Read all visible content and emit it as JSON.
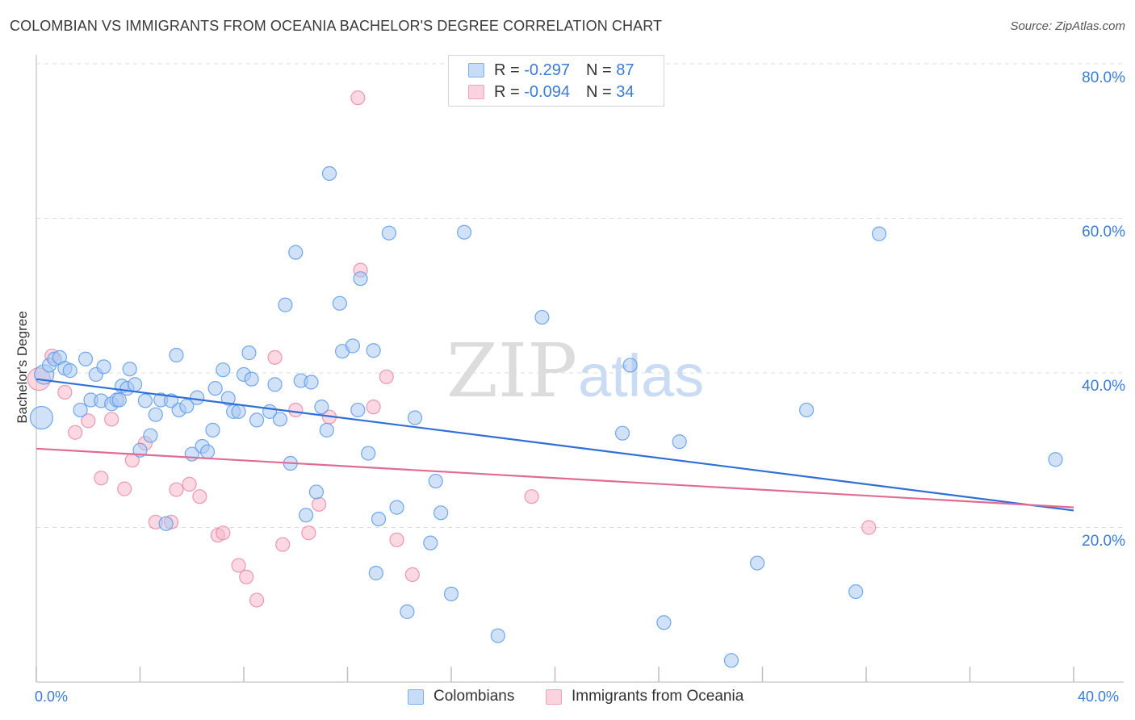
{
  "header": {
    "title": "COLOMBIAN VS IMMIGRANTS FROM OCEANIA BACHELOR'S DEGREE CORRELATION CHART",
    "source": "Source: ZipAtlas.com"
  },
  "watermark": {
    "text_zip": "ZIP",
    "text_atlas": "atlas"
  },
  "legend_top": {
    "rows": [
      {
        "r_label": "R =",
        "r_value": "-0.297",
        "n_label": "N =",
        "n_value": "87",
        "color": "#a9c9f3"
      },
      {
        "r_label": "R =",
        "r_value": "-0.094",
        "n_label": "N =",
        "n_value": "34",
        "color": "#f7b8cb"
      }
    ]
  },
  "legend_bottom": {
    "items": [
      {
        "label": "Colombians",
        "color": "#a9c9f3"
      },
      {
        "label": "Immigrants from Oceania",
        "color": "#f7b8cb"
      }
    ]
  },
  "chart_data": {
    "type": "scatter",
    "title": "COLOMBIAN VS IMMIGRANTS FROM OCEANIA BACHELOR'S DEGREE CORRELATION CHART",
    "xlabel": "",
    "ylabel": "Bachelor's Degree",
    "xlim": [
      0,
      40
    ],
    "ylim": [
      0,
      80
    ],
    "x_tick_labels": [
      "0.0%",
      "40.0%"
    ],
    "y_tick_labels": [
      "20.0%",
      "40.0%",
      "60.0%",
      "80.0%"
    ],
    "y_ticks": [
      20,
      40,
      60,
      80
    ],
    "grid": true,
    "legend_position": "top-center",
    "series": [
      {
        "name": "Colombians",
        "color": "#5b9bea",
        "fill": "#a9c9f3",
        "trend": {
          "x": [
            0,
            40
          ],
          "y": [
            39.2,
            22.2
          ],
          "color": "#2f6fd6"
        },
        "points": [
          [
            0.2,
            34.2,
            3
          ],
          [
            0.3,
            39.8,
            2
          ],
          [
            0.5,
            41.0,
            1
          ],
          [
            0.7,
            41.8,
            1
          ],
          [
            0.9,
            42.0,
            1
          ],
          [
            1.1,
            40.6,
            1
          ],
          [
            1.3,
            40.3,
            1
          ],
          [
            1.7,
            35.2,
            1
          ],
          [
            1.9,
            41.8,
            1
          ],
          [
            2.1,
            36.5,
            1
          ],
          [
            2.3,
            39.8,
            1
          ],
          [
            2.5,
            36.4,
            1
          ],
          [
            2.6,
            40.8,
            1
          ],
          [
            2.9,
            36.0,
            1
          ],
          [
            3.1,
            36.5,
            1
          ],
          [
            3.3,
            38.3,
            1
          ],
          [
            3.5,
            38.0,
            1
          ],
          [
            3.6,
            40.5,
            1
          ],
          [
            3.8,
            38.5,
            1
          ],
          [
            4.0,
            30.0,
            1
          ],
          [
            4.2,
            36.4,
            1
          ],
          [
            4.4,
            31.9,
            1
          ],
          [
            4.6,
            34.6,
            1
          ],
          [
            4.8,
            36.5,
            1
          ],
          [
            5.0,
            20.5,
            1
          ],
          [
            5.2,
            36.4,
            1
          ],
          [
            5.4,
            42.3,
            1
          ],
          [
            5.5,
            35.2,
            1
          ],
          [
            5.8,
            35.7,
            1
          ],
          [
            6.0,
            29.5,
            1
          ],
          [
            6.2,
            36.8,
            1
          ],
          [
            6.4,
            30.5,
            1
          ],
          [
            6.6,
            29.8,
            1
          ],
          [
            6.8,
            32.6,
            1
          ],
          [
            6.9,
            38.0,
            1
          ],
          [
            7.2,
            40.4,
            1
          ],
          [
            7.4,
            36.7,
            1
          ],
          [
            7.6,
            35.0,
            1
          ],
          [
            7.8,
            35.0,
            1
          ],
          [
            8.0,
            39.8,
            1
          ],
          [
            8.2,
            42.6,
            1
          ],
          [
            8.3,
            39.2,
            1
          ],
          [
            8.5,
            33.9,
            1
          ],
          [
            9.0,
            35.0,
            1
          ],
          [
            9.2,
            38.5,
            1
          ],
          [
            9.4,
            34.0,
            1
          ],
          [
            9.6,
            48.8,
            1
          ],
          [
            9.8,
            28.3,
            1
          ],
          [
            10.0,
            55.6,
            1
          ],
          [
            10.2,
            39.0,
            1
          ],
          [
            10.4,
            21.6,
            1
          ],
          [
            10.6,
            38.8,
            1
          ],
          [
            10.8,
            24.6,
            1
          ],
          [
            11.0,
            35.6,
            1
          ],
          [
            11.2,
            32.6,
            1
          ],
          [
            11.3,
            65.8,
            1
          ],
          [
            11.7,
            49.0,
            1
          ],
          [
            11.8,
            42.8,
            1
          ],
          [
            12.2,
            43.5,
            1
          ],
          [
            12.4,
            35.2,
            1
          ],
          [
            12.5,
            52.2,
            1
          ],
          [
            12.8,
            29.6,
            1
          ],
          [
            13.0,
            42.9,
            1
          ],
          [
            13.1,
            14.1,
            1
          ],
          [
            13.2,
            21.1,
            1
          ],
          [
            13.6,
            58.1,
            1
          ],
          [
            13.9,
            22.6,
            1
          ],
          [
            14.3,
            9.1,
            1
          ],
          [
            14.6,
            34.2,
            1
          ],
          [
            15.2,
            18.0,
            1
          ],
          [
            15.4,
            26.0,
            1
          ],
          [
            15.6,
            21.9,
            1
          ],
          [
            16.0,
            11.4,
            1
          ],
          [
            16.5,
            58.2,
            1
          ],
          [
            17.8,
            6.0,
            1
          ],
          [
            19.5,
            47.2,
            1
          ],
          [
            22.6,
            32.2,
            1
          ],
          [
            22.9,
            41.0,
            1
          ],
          [
            24.2,
            7.7,
            1
          ],
          [
            24.8,
            31.1,
            1
          ],
          [
            26.8,
            2.8,
            1
          ],
          [
            27.8,
            15.4,
            1
          ],
          [
            29.7,
            35.2,
            1
          ],
          [
            31.6,
            11.7,
            1
          ],
          [
            32.5,
            58.0,
            1
          ],
          [
            39.3,
            28.8,
            1
          ],
          [
            3.2,
            36.5,
            1
          ]
        ]
      },
      {
        "name": "Immigrants from Oceania",
        "color": "#e88aa8",
        "fill": "#f7b8cb",
        "trend": {
          "x": [
            0,
            40
          ],
          "y": [
            30.2,
            22.6
          ],
          "color": "#e06b93"
        },
        "points": [
          [
            0.1,
            39.2,
            3
          ],
          [
            0.6,
            42.2,
            1
          ],
          [
            1.1,
            37.5,
            1
          ],
          [
            1.5,
            32.3,
            1
          ],
          [
            2.0,
            33.8,
            1
          ],
          [
            2.5,
            26.4,
            1
          ],
          [
            2.9,
            34.0,
            1
          ],
          [
            3.4,
            25.0,
            1
          ],
          [
            3.7,
            28.7,
            1
          ],
          [
            4.2,
            30.9,
            1
          ],
          [
            4.6,
            20.7,
            1
          ],
          [
            5.2,
            20.7,
            1
          ],
          [
            5.4,
            24.9,
            1
          ],
          [
            5.9,
            25.6,
            1
          ],
          [
            6.3,
            24.0,
            1
          ],
          [
            7.0,
            19.0,
            1
          ],
          [
            7.2,
            19.3,
            1
          ],
          [
            7.8,
            15.1,
            1
          ],
          [
            8.1,
            13.6,
            1
          ],
          [
            8.5,
            10.6,
            1
          ],
          [
            9.2,
            42.0,
            1
          ],
          [
            9.5,
            17.8,
            1
          ],
          [
            10.0,
            35.2,
            1
          ],
          [
            10.5,
            19.3,
            1
          ],
          [
            10.9,
            23.0,
            1
          ],
          [
            11.3,
            34.3,
            1
          ],
          [
            12.4,
            75.6,
            1
          ],
          [
            12.5,
            53.3,
            1
          ],
          [
            13.0,
            35.6,
            1
          ],
          [
            13.5,
            39.5,
            1
          ],
          [
            13.9,
            18.4,
            1
          ],
          [
            14.5,
            13.9,
            1
          ],
          [
            19.1,
            24.0,
            1
          ],
          [
            32.1,
            20.0,
            1
          ]
        ]
      }
    ]
  }
}
